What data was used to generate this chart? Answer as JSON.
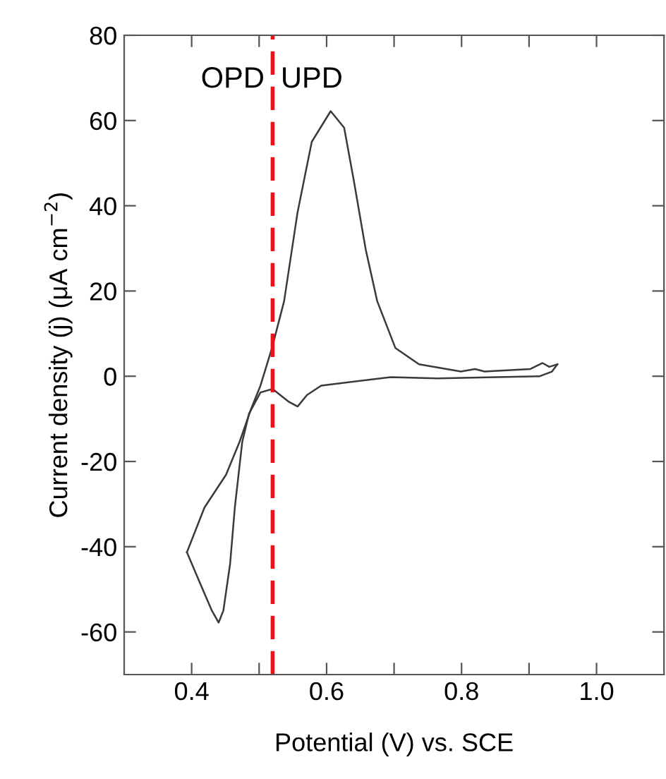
{
  "chart_data": {
    "type": "line",
    "xlabel": "Potential (V) vs. SCE",
    "ylabel": "Current density (j) (μA cm$^{−2}$)",
    "series": [
      {
        "color": "#3a3a3a",
        "x": [
          0.393,
          0.419,
          0.451,
          0.471,
          0.488,
          0.502,
          0.519,
          0.537,
          0.557,
          0.578,
          0.606,
          0.626,
          0.64,
          0.658,
          0.675,
          0.702,
          0.737,
          0.799,
          0.82,
          0.834,
          0.902,
          0.92,
          0.93,
          0.942
        ],
        "values": [
          -41.3,
          -30.8,
          -23.1,
          -15.4,
          -7.7,
          -2.2,
          6.6,
          17.6,
          38.5,
          55,
          62.2,
          58.3,
          46.2,
          29.7,
          17.6,
          6.6,
          2.8,
          1.1,
          1.7,
          1.1,
          1.7,
          3.1,
          2.2,
          2.8
        ]
      },
      {
        "color": "#3a3a3a",
        "x": [
          0.393,
          0.412,
          0.43,
          0.44,
          0.447,
          0.457,
          0.464,
          0.475,
          0.485,
          0.502,
          0.52,
          0.544,
          0.557,
          0.571,
          0.592,
          0.695,
          0.764,
          0.916,
          0.934,
          0.942
        ],
        "values": [
          -41.3,
          -48.4,
          -55,
          -57.8,
          -55,
          -44,
          -30.8,
          -15.4,
          -8.8,
          -3.8,
          -3.0,
          -6.0,
          -7.1,
          -4.4,
          -2.2,
          -0.2,
          -0.5,
          0,
          1.1,
          2.8
        ]
      }
    ],
    "xlim": [
      0.3,
      1.1
    ],
    "xticks": [
      0.4,
      {
        "value": 0.5,
        "label": null
      },
      0.6,
      {
        "value": 0.7,
        "label": null
      },
      0.8,
      {
        "value": 0.9,
        "label": null
      },
      {
        "value": 1.0,
        "label": "1.0"
      }
    ],
    "ylim": [
      -70,
      80
    ],
    "yticks": [
      -60,
      -40,
      -20,
      0,
      20,
      40,
      60,
      80
    ],
    "ref_lines": [
      {
        "axis": "x",
        "value": 0.52,
        "color": "#e8141c",
        "line_style": "dashed"
      }
    ],
    "annotations": [
      "OPD",
      "UPD"
    ],
    "marker": "none",
    "line_style": "solid",
    "grid": false,
    "legend": false
  }
}
